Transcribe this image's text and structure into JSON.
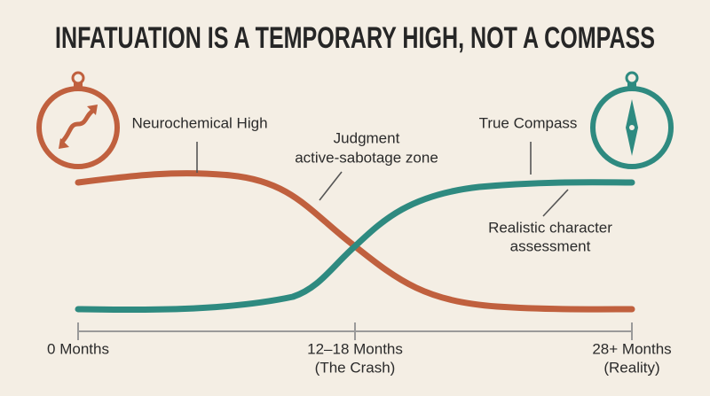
{
  "title": "INFATUATION IS A TEMPORARY HIGH, NOT A COMPASS",
  "curves": [
    {
      "label": "Neurochemical High"
    },
    {
      "label": "True Compass"
    }
  ],
  "annotations": [
    {
      "lines": [
        "Judgment",
        "active-sabotage zone"
      ]
    },
    {
      "lines": [
        "Realistic character",
        "assessment"
      ]
    }
  ],
  "timeline": [
    {
      "lines": [
        "0 Months"
      ]
    },
    {
      "lines": [
        "12–18 Months",
        "(The Crash)"
      ]
    },
    {
      "lines": [
        "28+ Months",
        "(Reality)"
      ]
    }
  ]
}
